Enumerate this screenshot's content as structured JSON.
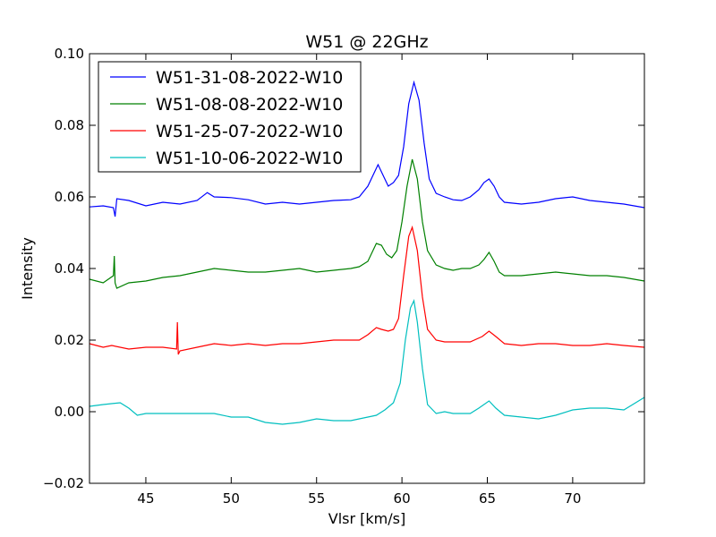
{
  "chart_data": {
    "type": "line",
    "title": "W51 @ 22GHz",
    "xlabel": "Vlsr [km/s]",
    "ylabel": "Intensity",
    "xlim": [
      41.7,
      74.2
    ],
    "ylim": [
      -0.02,
      0.1
    ],
    "xticks": [
      45,
      50,
      55,
      60,
      65,
      70
    ],
    "yticks": [
      -0.02,
      0.0,
      0.02,
      0.04,
      0.06,
      0.08,
      0.1
    ],
    "ytick_labels": [
      "−0.02",
      "0.00",
      "0.02",
      "0.04",
      "0.06",
      "0.08",
      "0.10"
    ],
    "grid": false,
    "legend_position": "top-left",
    "series": [
      {
        "name": "W51-31-08-2022-W10",
        "color": "#0000ff",
        "points": [
          [
            41.7,
            0.0572
          ],
          [
            42.5,
            0.0575
          ],
          [
            43.1,
            0.057
          ],
          [
            43.2,
            0.0545
          ],
          [
            43.3,
            0.0595
          ],
          [
            44,
            0.059
          ],
          [
            45,
            0.0575
          ],
          [
            46,
            0.0585
          ],
          [
            47,
            0.058
          ],
          [
            48,
            0.059
          ],
          [
            48.6,
            0.0612
          ],
          [
            49,
            0.06
          ],
          [
            50,
            0.0598
          ],
          [
            51,
            0.0592
          ],
          [
            52,
            0.058
          ],
          [
            53,
            0.0585
          ],
          [
            54,
            0.058
          ],
          [
            55,
            0.0585
          ],
          [
            56,
            0.059
          ],
          [
            57,
            0.0592
          ],
          [
            57.5,
            0.06
          ],
          [
            58,
            0.063
          ],
          [
            58.4,
            0.067
          ],
          [
            58.6,
            0.069
          ],
          [
            58.9,
            0.066
          ],
          [
            59.2,
            0.063
          ],
          [
            59.5,
            0.064
          ],
          [
            59.8,
            0.066
          ],
          [
            60.1,
            0.074
          ],
          [
            60.4,
            0.086
          ],
          [
            60.7,
            0.092
          ],
          [
            61,
            0.087
          ],
          [
            61.3,
            0.075
          ],
          [
            61.6,
            0.065
          ],
          [
            62,
            0.061
          ],
          [
            62.5,
            0.06
          ],
          [
            63,
            0.0592
          ],
          [
            63.5,
            0.059
          ],
          [
            64,
            0.06
          ],
          [
            64.5,
            0.062
          ],
          [
            64.8,
            0.064
          ],
          [
            65.1,
            0.065
          ],
          [
            65.4,
            0.063
          ],
          [
            65.7,
            0.06
          ],
          [
            66,
            0.0585
          ],
          [
            67,
            0.058
          ],
          [
            68,
            0.0585
          ],
          [
            69,
            0.0595
          ],
          [
            70,
            0.06
          ],
          [
            71,
            0.059
          ],
          [
            72,
            0.0585
          ],
          [
            73,
            0.058
          ],
          [
            74.2,
            0.057
          ]
        ]
      },
      {
        "name": "W51-08-08-2022-W10",
        "color": "#008000",
        "points": [
          [
            41.7,
            0.037
          ],
          [
            42.5,
            0.036
          ],
          [
            43.1,
            0.038
          ],
          [
            43.15,
            0.0435
          ],
          [
            43.2,
            0.036
          ],
          [
            43.3,
            0.0345
          ],
          [
            44,
            0.036
          ],
          [
            45,
            0.0365
          ],
          [
            46,
            0.0375
          ],
          [
            47,
            0.038
          ],
          [
            48,
            0.039
          ],
          [
            49,
            0.04
          ],
          [
            50,
            0.0395
          ],
          [
            51,
            0.039
          ],
          [
            52,
            0.039
          ],
          [
            53,
            0.0395
          ],
          [
            54,
            0.04
          ],
          [
            55,
            0.039
          ],
          [
            56,
            0.0395
          ],
          [
            57,
            0.04
          ],
          [
            57.5,
            0.0405
          ],
          [
            58,
            0.042
          ],
          [
            58.5,
            0.047
          ],
          [
            58.8,
            0.0465
          ],
          [
            59.1,
            0.044
          ],
          [
            59.4,
            0.043
          ],
          [
            59.7,
            0.045
          ],
          [
            60,
            0.053
          ],
          [
            60.3,
            0.063
          ],
          [
            60.6,
            0.0705
          ],
          [
            60.9,
            0.065
          ],
          [
            61.2,
            0.053
          ],
          [
            61.5,
            0.045
          ],
          [
            62,
            0.041
          ],
          [
            62.5,
            0.04
          ],
          [
            63,
            0.0395
          ],
          [
            63.5,
            0.04
          ],
          [
            64,
            0.04
          ],
          [
            64.5,
            0.041
          ],
          [
            64.8,
            0.0425
          ],
          [
            65.1,
            0.0445
          ],
          [
            65.4,
            0.042
          ],
          [
            65.7,
            0.039
          ],
          [
            66,
            0.038
          ],
          [
            67,
            0.038
          ],
          [
            68,
            0.0385
          ],
          [
            69,
            0.039
          ],
          [
            70,
            0.0385
          ],
          [
            71,
            0.038
          ],
          [
            72,
            0.038
          ],
          [
            73,
            0.0375
          ],
          [
            74.2,
            0.0365
          ]
        ]
      },
      {
        "name": "W51-25-07-2022-W10",
        "color": "#ff0000",
        "points": [
          [
            41.7,
            0.019
          ],
          [
            42.5,
            0.018
          ],
          [
            43,
            0.0185
          ],
          [
            44,
            0.0175
          ],
          [
            45,
            0.018
          ],
          [
            46,
            0.018
          ],
          [
            46.8,
            0.0175
          ],
          [
            46.85,
            0.025
          ],
          [
            46.9,
            0.016
          ],
          [
            47,
            0.017
          ],
          [
            48,
            0.018
          ],
          [
            49,
            0.019
          ],
          [
            50,
            0.0185
          ],
          [
            51,
            0.019
          ],
          [
            52,
            0.0185
          ],
          [
            53,
            0.019
          ],
          [
            54,
            0.019
          ],
          [
            55,
            0.0195
          ],
          [
            56,
            0.02
          ],
          [
            57,
            0.02
          ],
          [
            57.5,
            0.02
          ],
          [
            58,
            0.0215
          ],
          [
            58.5,
            0.0235
          ],
          [
            58.8,
            0.023
          ],
          [
            59.2,
            0.0225
          ],
          [
            59.5,
            0.023
          ],
          [
            59.8,
            0.026
          ],
          [
            60.1,
            0.038
          ],
          [
            60.4,
            0.049
          ],
          [
            60.6,
            0.0515
          ],
          [
            60.9,
            0.045
          ],
          [
            61.2,
            0.032
          ],
          [
            61.5,
            0.023
          ],
          [
            62,
            0.02
          ],
          [
            62.5,
            0.0195
          ],
          [
            63,
            0.0195
          ],
          [
            64,
            0.0195
          ],
          [
            64.7,
            0.021
          ],
          [
            65.1,
            0.0225
          ],
          [
            65.5,
            0.021
          ],
          [
            66,
            0.019
          ],
          [
            67,
            0.0185
          ],
          [
            68,
            0.019
          ],
          [
            69,
            0.019
          ],
          [
            70,
            0.0185
          ],
          [
            71,
            0.0185
          ],
          [
            72,
            0.019
          ],
          [
            73,
            0.0185
          ],
          [
            74.2,
            0.018
          ]
        ]
      },
      {
        "name": "W51-10-06-2022-W10",
        "color": "#00bfbf",
        "points": [
          [
            41.7,
            0.0015
          ],
          [
            42.5,
            0.002
          ],
          [
            43.5,
            0.0025
          ],
          [
            44,
            0.001
          ],
          [
            44.5,
            -0.001
          ],
          [
            45,
            -0.0005
          ],
          [
            46,
            -0.0005
          ],
          [
            47,
            -0.0005
          ],
          [
            48,
            -0.0005
          ],
          [
            49,
            -0.0005
          ],
          [
            50,
            -0.0015
          ],
          [
            51,
            -0.0015
          ],
          [
            52,
            -0.003
          ],
          [
            53,
            -0.0035
          ],
          [
            54,
            -0.003
          ],
          [
            55,
            -0.002
          ],
          [
            56,
            -0.0025
          ],
          [
            57,
            -0.0025
          ],
          [
            58,
            -0.0015
          ],
          [
            58.5,
            -0.001
          ],
          [
            59,
            0.0005
          ],
          [
            59.5,
            0.0025
          ],
          [
            59.9,
            0.008
          ],
          [
            60.2,
            0.02
          ],
          [
            60.5,
            0.029
          ],
          [
            60.7,
            0.031
          ],
          [
            60.9,
            0.025
          ],
          [
            61.2,
            0.012
          ],
          [
            61.5,
            0.002
          ],
          [
            62,
            -0.0005
          ],
          [
            62.5,
            0.0
          ],
          [
            63,
            -0.0005
          ],
          [
            64,
            -0.0005
          ],
          [
            64.5,
            0.001
          ],
          [
            65.1,
            0.003
          ],
          [
            65.5,
            0.001
          ],
          [
            66,
            -0.001
          ],
          [
            67,
            -0.0015
          ],
          [
            68,
            -0.002
          ],
          [
            69,
            -0.001
          ],
          [
            70,
            0.0005
          ],
          [
            71,
            0.001
          ],
          [
            72,
            0.001
          ],
          [
            73,
            0.0005
          ],
          [
            74.2,
            0.004
          ]
        ]
      }
    ]
  }
}
